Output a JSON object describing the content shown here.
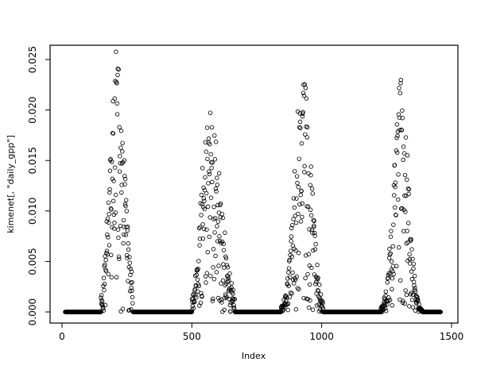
{
  "figure": {
    "background": "#ffffff",
    "foreground": "#000000"
  },
  "chart_data": {
    "type": "scatter",
    "title": "",
    "xlabel": "Index",
    "ylabel": "kimenet[, \"daily_gpp\"]",
    "xlim": [
      0,
      1500
    ],
    "ylim": [
      0,
      0.025
    ],
    "x_ticks": [
      0,
      500,
      1000,
      1500
    ],
    "x_tick_labels": [
      "0",
      "500",
      "1000",
      "1500"
    ],
    "y_ticks": [
      0,
      0.005,
      0.01,
      0.015,
      0.02,
      0.025
    ],
    "y_tick_labels": [
      "0.000",
      "0.005",
      "0.010",
      "0.015",
      "0.020",
      "0.025"
    ],
    "legend": "none",
    "grid": "off",
    "marker": "open-circle",
    "marker_color": "#000000",
    "n_points_approx": 1450,
    "x_points_range": [
      12,
      1458
    ],
    "pattern_segments": [
      {
        "kind": "zero",
        "x0": 12,
        "x1": 150,
        "y": 0
      },
      {
        "kind": "season",
        "x0": 150,
        "x1": 272,
        "peak_x": 210,
        "peak_y": 0.0255,
        "rise": 26,
        "fall": 30,
        "spread": 0.5,
        "low_frac": 0.22
      },
      {
        "kind": "zero",
        "x0": 273,
        "x1": 500,
        "y": 0
      },
      {
        "kind": "season",
        "x0": 500,
        "x1": 665,
        "peak_x": 565,
        "peak_y": 0.0205,
        "rise": 28,
        "fall": 45,
        "spread": 0.55,
        "low_frac": 0.3
      },
      {
        "kind": "zero",
        "x0": 666,
        "x1": 843,
        "y": 0
      },
      {
        "kind": "season",
        "x0": 843,
        "x1": 1005,
        "peak_x": 928,
        "peak_y": 0.0255,
        "rise": 30,
        "fall": 30,
        "spread": 0.5,
        "low_frac": 0.25
      },
      {
        "kind": "zero",
        "x0": 1006,
        "x1": 1228,
        "y": 0
      },
      {
        "kind": "season",
        "x0": 1228,
        "x1": 1392,
        "peak_x": 1307,
        "peak_y": 0.0245,
        "rise": 28,
        "fall": 26,
        "spread": 0.5,
        "low_frac": 0.25
      },
      {
        "kind": "zero",
        "x0": 1393,
        "x1": 1458,
        "y": 0
      }
    ]
  }
}
